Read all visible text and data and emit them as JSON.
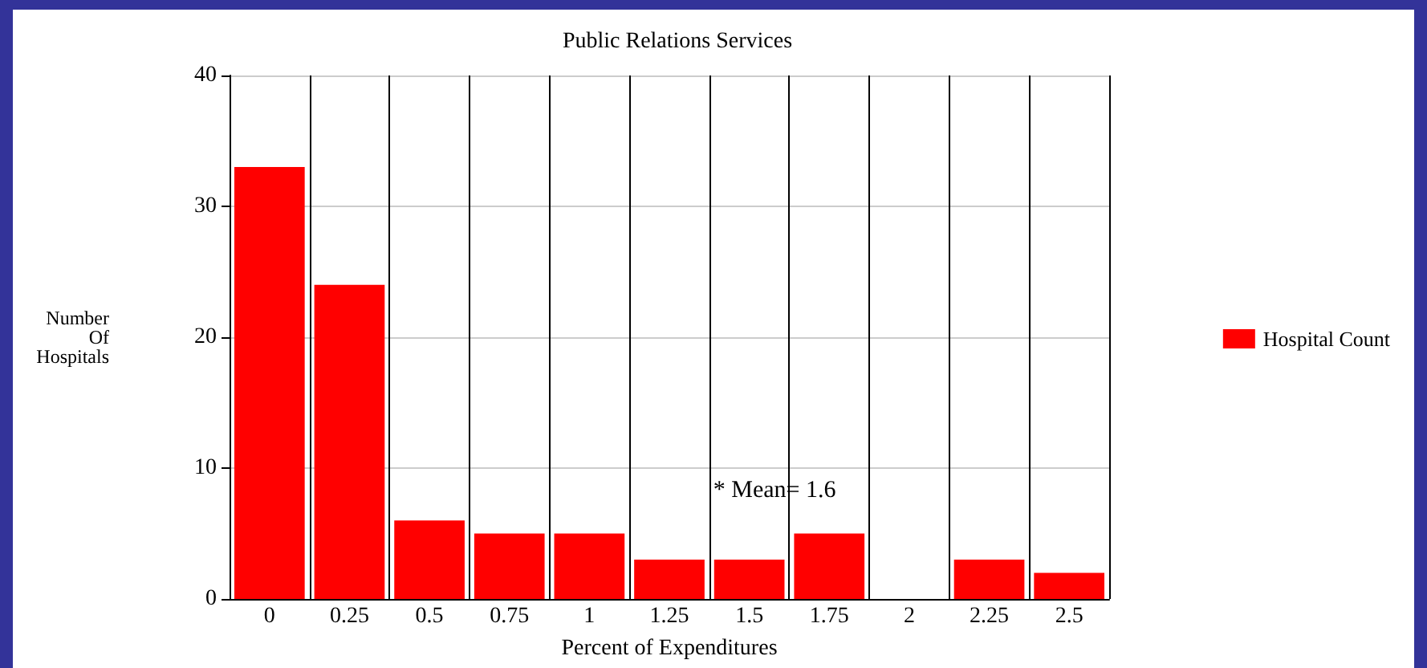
{
  "chart_data": {
    "type": "bar",
    "title": "Public Relations Services",
    "xlabel": "Percent of Expenditures",
    "ylabel": "Number\nOf\nHospitals",
    "categories": [
      "0",
      "0.25",
      "0.5",
      "0.75",
      "1",
      "1.25",
      "1.5",
      "1.75",
      "2",
      "2.25",
      "2.5"
    ],
    "series": [
      {
        "name": "Hospital Count",
        "color": "#ff0000",
        "values": [
          33,
          24,
          6,
          5,
          5,
          3,
          3,
          5,
          0,
          3,
          2
        ]
      }
    ],
    "ylim": [
      0,
      40
    ],
    "yticks": [
      0,
      10,
      20,
      30,
      40
    ],
    "grid": true,
    "legend": "right",
    "annotations": [
      "* Mean= 1.6"
    ]
  }
}
